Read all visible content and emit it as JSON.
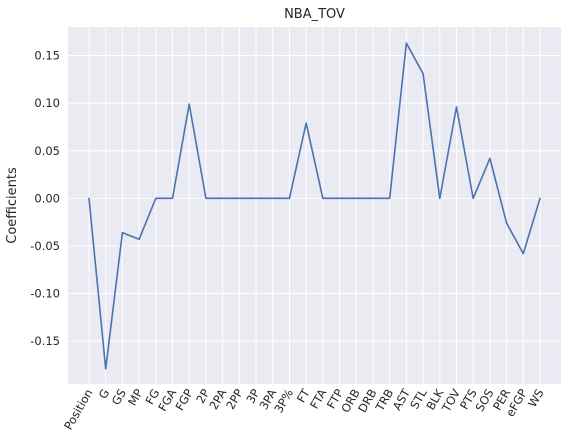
{
  "chart_data": {
    "type": "line",
    "title": "NBA_TOV",
    "xlabel": "",
    "ylabel": "Coefficients",
    "categories": [
      "Position",
      "G",
      "GS",
      "MP",
      "FG",
      "FGA",
      "FGP",
      "2P",
      "2PA",
      "2PP",
      "3P",
      "3PA",
      "3P%",
      "FT",
      "FTA",
      "FTP",
      "ORB",
      "DRB",
      "TRB",
      "AST",
      "STL",
      "BLK",
      "TOV",
      "PTS",
      "SOS",
      "PER",
      "eFGP",
      "WS"
    ],
    "series": [
      {
        "values": [
          0.0,
          -0.179,
          -0.036,
          -0.043,
          0.0,
          0.0,
          0.099,
          0.0,
          0.0,
          0.0,
          0.0,
          0.0,
          0.0,
          0.079,
          0.0,
          0.0,
          0.0,
          0.0,
          0.0,
          0.163,
          0.131,
          0.0,
          0.096,
          0.0,
          0.042,
          -0.026,
          -0.058,
          0.0
        ],
        "color": "#4c72b0"
      }
    ],
    "ylim": [
      -0.195,
      0.18
    ],
    "yticks": [
      -0.15,
      -0.1,
      -0.05,
      0.0,
      0.05,
      0.1,
      0.15
    ],
    "ytick_labels": [
      "-0.15",
      "-0.10",
      "-0.05",
      "0.00",
      "0.05",
      "0.10",
      "0.15"
    ],
    "grid": true,
    "background": "#eaeaf2",
    "grid_color": "#ffffff"
  }
}
